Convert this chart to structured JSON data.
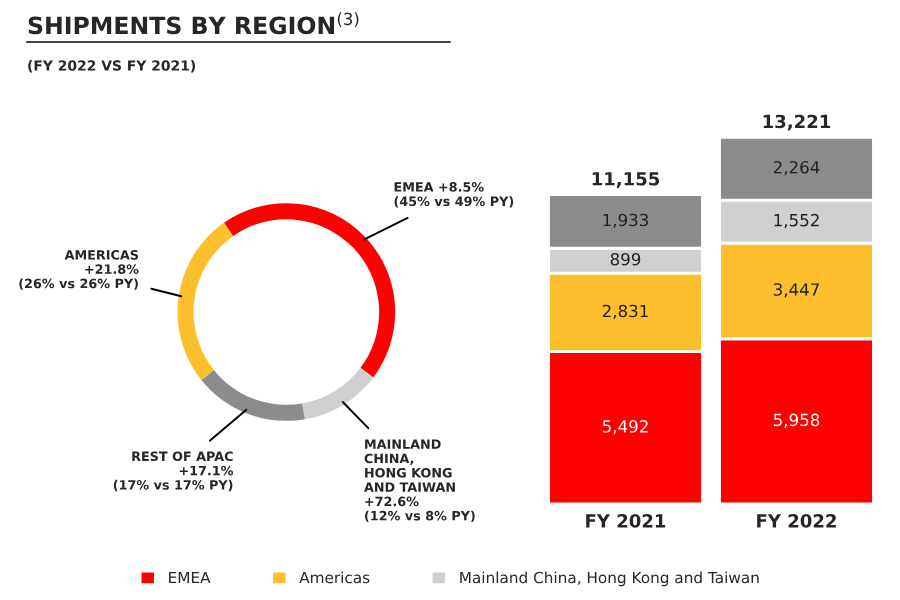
{
  "chart_data": [
    {
      "type": "donut",
      "title": "SHIPMENTS BY REGION$^{(3)}$",
      "subtitle": "(FY 2022 VS FY 2021)",
      "categories": [
        "EMEA +8.5%\n(45% vs 49% PY)",
        "MAINLAND\nCHINA,\nHONG KONG\nAND TAIWAN\n+72.6%\n(12% vs 8% PY)",
        "REST OF APAC\n+17.1%\n(17% vs 17% PY)",
        "AMERICAS\n+21.8%\n(26% vs 26% PY)"
      ],
      "values": [
        45,
        12,
        17,
        26
      ],
      "colors": [
        "#ff0000",
        "#d0d0d0",
        "#8c8c8c",
        "#fdbf2d"
      ]
    },
    {
      "type": "bar",
      "stacked": true,
      "categories": [
        "FY 2021",
        "FY 2022"
      ],
      "legend": "bottom",
      "totals": [
        "11,155",
        "13,221"
      ],
      "series": [
        {
          "name": "EMEA",
          "color": "#ff0000",
          "values": [
            5492,
            5958
          ],
          "value_labels": [
            "5,492",
            "5,958"
          ]
        },
        {
          "name": "Americas",
          "color": "#fdbf2d",
          "values": [
            2831,
            3447
          ],
          "value_labels": [
            "2,831",
            "3,447"
          ]
        },
        {
          "name": "Mainland China, Hong Kong and Taiwan",
          "color": "#d0d0d0",
          "values": [
            899,
            1552
          ],
          "value_labels": [
            "899",
            "1,552"
          ]
        },
        {
          "color": "#8c8c8c",
          "values": [
            1933,
            2264
          ],
          "value_labels": [
            "1,933",
            "2,264"
          ]
        }
      ]
    }
  ]
}
